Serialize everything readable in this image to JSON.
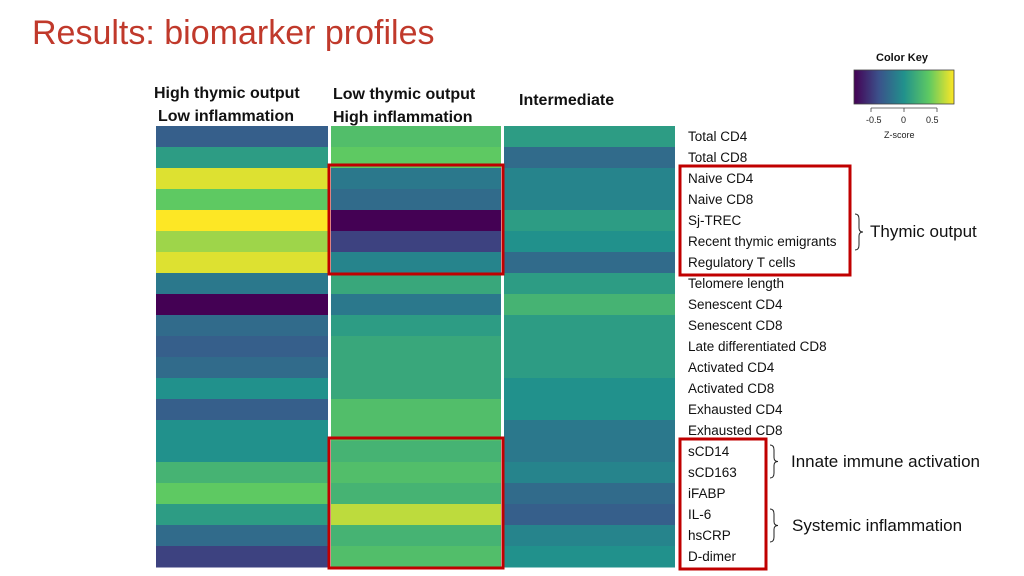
{
  "slide": {
    "title": "Results: biomarker profiles"
  },
  "columns": [
    {
      "line1": "High thymic output",
      "line2": "Low inflammation"
    },
    {
      "line1": "Low thymic output",
      "line2": "High inflammation"
    },
    {
      "line1": "Intermediate",
      "line2": ""
    }
  ],
  "groups": {
    "thymic": "Thymic output",
    "innate": "Innate immune activation",
    "systemic": "Systemic inflammation"
  },
  "color_key": {
    "title": "Color Key",
    "ticks": [
      "-0.5",
      "0",
      "0.5"
    ],
    "xlabel": "Z-score",
    "colors": [
      "#440154",
      "#3b528b",
      "#21918c",
      "#5ec962",
      "#fde725"
    ]
  },
  "highlight_color": "#c00000",
  "chart_data": {
    "type": "heatmap",
    "title": "Results: biomarker profiles",
    "rows": [
      "Total CD4",
      "Total CD8",
      "Naive CD4",
      "Naive CD8",
      "Sj-TREC",
      "Recent thymic emigrants",
      "Regulatory T cells",
      "Telomere length",
      "Senescent CD4",
      "Senescent CD8",
      "Late differentiated CD8",
      "Activated CD4",
      "Activated CD8",
      "Exhausted CD4",
      "Exhausted CD8",
      "sCD14",
      "sCD163",
      "iFABP",
      "IL-6",
      "hsCRP",
      "D-dimer"
    ],
    "columns": [
      "High thymic output / Low inflammation",
      "Low thymic output / High inflammation",
      "Intermediate"
    ],
    "values": [
      [
        -0.4,
        0.4,
        0.1
      ],
      [
        0.1,
        0.5,
        -0.3
      ],
      [
        0.9,
        -0.2,
        -0.1
      ],
      [
        0.5,
        -0.3,
        -0.1
      ],
      [
        1.0,
        -1.0,
        0.1
      ],
      [
        0.7,
        -0.6,
        0.0
      ],
      [
        0.9,
        -0.1,
        -0.3
      ],
      [
        -0.2,
        0.2,
        0.1
      ],
      [
        -1.0,
        -0.2,
        0.3
      ],
      [
        -0.3,
        0.1,
        0.1
      ],
      [
        -0.4,
        0.2,
        0.1
      ],
      [
        -0.3,
        0.2,
        0.1
      ],
      [
        0.0,
        0.2,
        0.0
      ],
      [
        -0.4,
        0.4,
        0.0
      ],
      [
        0.0,
        0.4,
        -0.2
      ],
      [
        0.0,
        0.3,
        -0.2
      ],
      [
        0.3,
        0.4,
        -0.1
      ],
      [
        0.5,
        0.3,
        -0.3
      ],
      [
        0.1,
        0.8,
        -0.4
      ],
      [
        -0.3,
        0.3,
        -0.1
      ],
      [
        -0.6,
        0.4,
        0.0
      ]
    ],
    "zlim": [
      -1,
      1
    ],
    "highlight_boxes": [
      {
        "column": 1,
        "row_start": 2,
        "row_end": 6
      },
      {
        "column": 1,
        "row_start": 15,
        "row_end": 20
      },
      {
        "label_rows_start": 2,
        "label_rows_end": 6
      },
      {
        "label_rows_start": 15,
        "label_rows_end": 20
      }
    ],
    "color_key": {
      "label": "Z-score",
      "ticks": [
        -0.5,
        0,
        0.5
      ]
    }
  }
}
